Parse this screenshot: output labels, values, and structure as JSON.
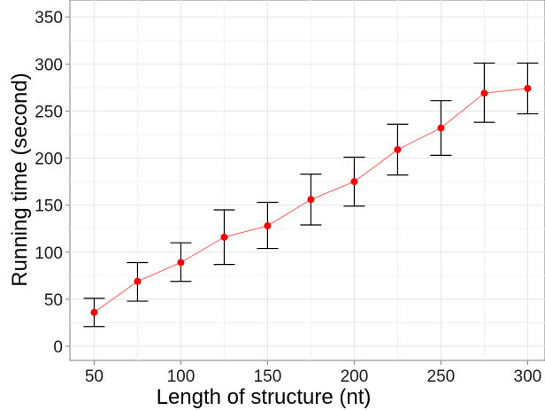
{
  "chart_data": {
    "type": "line",
    "title": "",
    "xlabel": "Length of structure (nt)",
    "ylabel": "Running time (second)",
    "xlim": [
      36,
      310
    ],
    "ylim": [
      -15,
      368
    ],
    "x_ticks": [
      50,
      100,
      150,
      200,
      250,
      300
    ],
    "x_tick_labels": [
      "50",
      "100",
      "150",
      "200",
      "250",
      "300"
    ],
    "y_ticks": [
      0,
      50,
      100,
      150,
      200,
      250,
      300,
      350
    ],
    "y_tick_labels": [
      "0",
      "50",
      "100",
      "150",
      "200",
      "250",
      "300",
      "350"
    ],
    "grid": true,
    "legend": "none",
    "series": [
      {
        "x": [
          50,
          75,
          100,
          125,
          150,
          175,
          200,
          225,
          250,
          275,
          300
        ],
        "values": [
          36,
          69,
          89,
          116,
          128,
          156,
          175,
          209,
          232,
          269,
          274
        ],
        "error_low": [
          21,
          48,
          69,
          87,
          104,
          129,
          149,
          182,
          203,
          238,
          247
        ],
        "error_high": [
          51,
          89,
          110,
          145,
          153,
          183,
          201,
          236,
          261,
          301,
          301
        ],
        "line_color": "#f8766d",
        "point_color": "#ff0000",
        "error_color": "#000000"
      }
    ]
  }
}
